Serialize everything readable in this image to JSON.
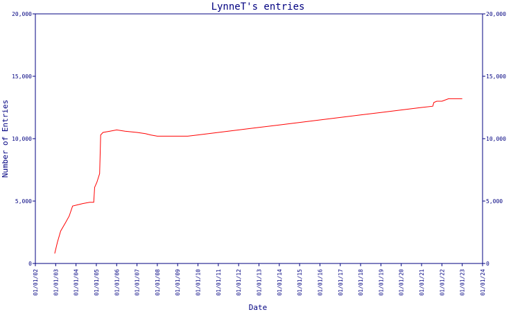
{
  "chart_data": {
    "type": "line",
    "title": "LynneT's entries",
    "xlabel": "Date",
    "ylabel": "Number of Entries",
    "x_ticks": [
      "01/01/02",
      "01/01/03",
      "01/01/04",
      "01/01/05",
      "01/01/06",
      "01/01/07",
      "01/01/08",
      "01/01/09",
      "01/01/10",
      "01/01/11",
      "01/01/12",
      "01/01/13",
      "01/01/14",
      "01/01/15",
      "01/01/16",
      "01/01/17",
      "01/01/18",
      "01/01/19",
      "01/01/20",
      "01/01/21",
      "01/01/22",
      "01/01/23",
      "01/01/24"
    ],
    "y_ticks": [
      "0",
      "5,000",
      "10,000",
      "15,000",
      "20,000"
    ],
    "ylim": [
      0,
      20000
    ],
    "xlim": [
      "2002-01-01",
      "2024-01-01"
    ],
    "grid": false,
    "legend": "none",
    "colors": {
      "axis": "#000080",
      "series": "#ff0000",
      "text": "#000080"
    },
    "series": [
      {
        "x": [
          "2002-12-15",
          "2003-02-01",
          "2003-04-01",
          "2003-07-01",
          "2003-09-01",
          "2003-11-01",
          "2004-02-01",
          "2004-05-01",
          "2004-09-01",
          "2004-11-15",
          "2004-12-01",
          "2005-01-10",
          "2005-03-01",
          "2005-03-20",
          "2005-05-01",
          "2005-09-01",
          "2006-01-01",
          "2006-06-01",
          "2007-01-01",
          "2007-06-01",
          "2007-09-01",
          "2008-01-01",
          "2009-01-01",
          "2009-07-01",
          "2010-01-01",
          "2011-01-01",
          "2012-01-01",
          "2013-01-01",
          "2014-01-01",
          "2015-01-01",
          "2016-01-01",
          "2017-01-01",
          "2018-01-01",
          "2019-01-01",
          "2020-01-01",
          "2021-01-01",
          "2021-07-20",
          "2021-08-10",
          "2021-10-01",
          "2022-01-01",
          "2022-05-01",
          "2023-01-01"
        ],
        "values": [
          800,
          1700,
          2600,
          3300,
          3800,
          4600,
          4700,
          4800,
          4900,
          4900,
          6100,
          6500,
          7200,
          10300,
          10500,
          10600,
          10700,
          10600,
          10500,
          10400,
          10300,
          10200,
          10200,
          10200,
          10300,
          10500,
          10700,
          10900,
          11100,
          11300,
          11500,
          11700,
          11900,
          12100,
          12300,
          12500,
          12600,
          12900,
          13000,
          13000,
          13200,
          13200
        ]
      }
    ]
  }
}
